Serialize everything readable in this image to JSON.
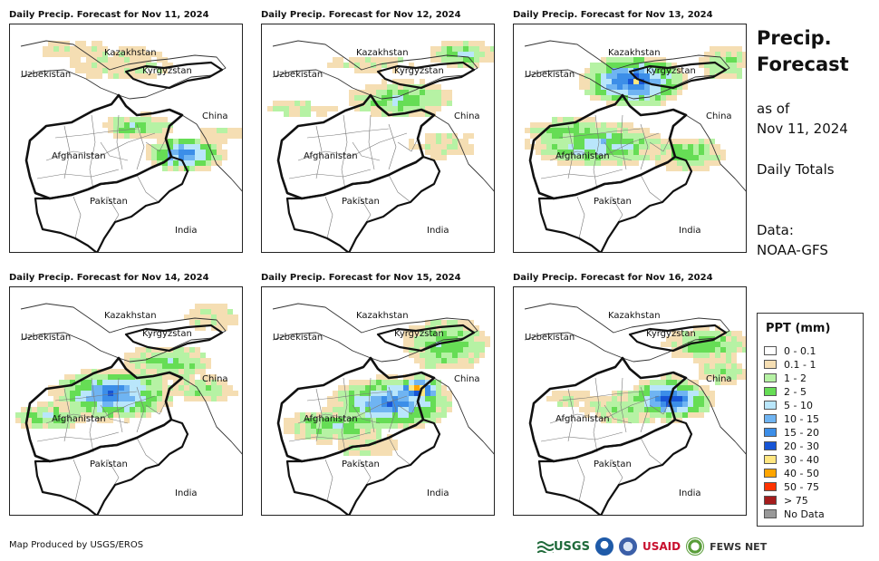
{
  "panels": [
    {
      "title": "Daily Precip. Forecast for Nov 11, 2024"
    },
    {
      "title": "Daily Precip. Forecast for Nov 12, 2024"
    },
    {
      "title": "Daily Precip. Forecast for Nov 13, 2024"
    },
    {
      "title": "Daily Precip. Forecast for Nov 14, 2024"
    },
    {
      "title": "Daily Precip. Forecast for Nov 15, 2024"
    },
    {
      "title": "Daily Precip. Forecast for Nov 16, 2024"
    }
  ],
  "map_labels": {
    "kazakhstan": "Kazakhstan",
    "uzbekistan": "Uzbekistan",
    "kyrgyzstan": "Kyrgyzstan",
    "china": "China",
    "afghanistan": "Afghanistan",
    "pakistan": "Pakistan",
    "india": "India"
  },
  "side": {
    "title_line1": "Precip.",
    "title_line2": "Forecast",
    "asof_line1": "as of",
    "asof_line2": "Nov 11, 2024",
    "daily": "Daily Totals",
    "data_line1": "Data:",
    "data_line2": "NOAA-GFS"
  },
  "legend": {
    "title": "PPT (mm)",
    "items": [
      {
        "label": "0 - 0.1",
        "color": "#ffffff"
      },
      {
        "label": "0.1 - 1",
        "color": "#f5deb3"
      },
      {
        "label": "1 - 2",
        "color": "#b6f2a4"
      },
      {
        "label": "2 - 5",
        "color": "#66dd55"
      },
      {
        "label": "5 - 10",
        "color": "#b9e6fb"
      },
      {
        "label": "10 - 15",
        "color": "#6fb4f2"
      },
      {
        "label": "15 - 20",
        "color": "#3c8ee8"
      },
      {
        "label": "20 - 30",
        "color": "#1755d6"
      },
      {
        "label": "30 - 40",
        "color": "#ffe680"
      },
      {
        "label": "40 - 50",
        "color": "#ffa500"
      },
      {
        "label": "50 - 75",
        "color": "#ff3300"
      },
      {
        "label": "> 75",
        "color": "#a51c1c"
      },
      {
        "label": "No Data",
        "color": "#999999"
      }
    ]
  },
  "credit": "Map Produced by USGS/EROS",
  "logos": {
    "usgs": "USGS",
    "usaid": "USAID",
    "fews": "FEWS NET"
  }
}
